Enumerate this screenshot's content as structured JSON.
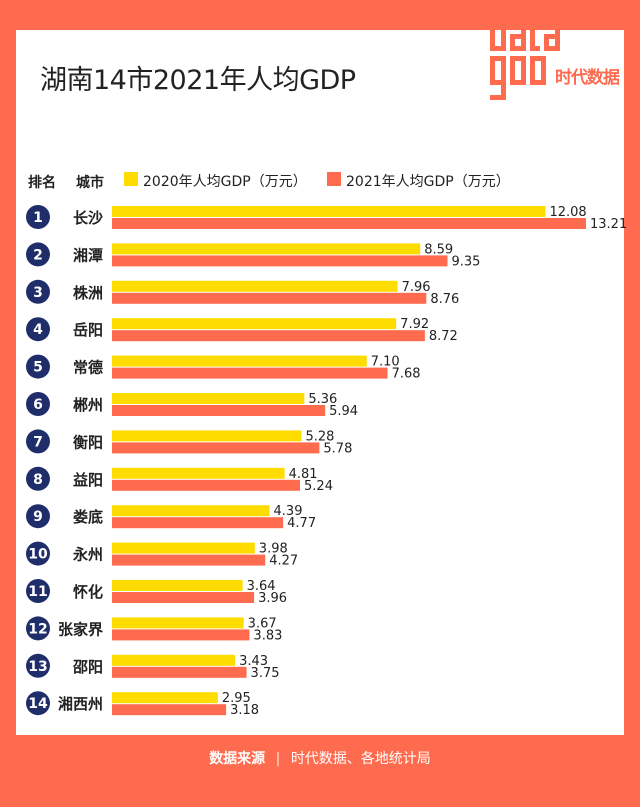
{
  "title": "湖南14市2021年人均GDP",
  "logo": {
    "mark_name": "datagoo-logo",
    "text": "时代数据"
  },
  "header": {
    "rank_label": "排名",
    "city_label": "城市"
  },
  "colors": {
    "y2020": "#ffdc00",
    "y2021": "#ff6b4f",
    "rank": "#1f2d6b",
    "frame": "#ff6b4f"
  },
  "footer": {
    "source_label": "数据来源",
    "separator": "|",
    "source_text": "时代数据、各地统计局"
  },
  "chart_data": {
    "type": "bar",
    "orientation": "horizontal",
    "title": "湖南14市2021年人均GDP",
    "series": [
      {
        "name": "2020年人均GDP（万元）",
        "values": [
          12.08,
          8.59,
          7.96,
          7.92,
          7.1,
          5.36,
          5.28,
          4.81,
          4.39,
          3.98,
          3.64,
          3.67,
          3.43,
          2.95
        ]
      },
      {
        "name": "2021年人均GDP（万元）",
        "values": [
          13.21,
          9.35,
          8.76,
          8.72,
          7.68,
          5.94,
          5.78,
          5.24,
          4.77,
          4.27,
          3.96,
          3.83,
          3.75,
          3.18
        ]
      }
    ],
    "ranks": [
      "1",
      "2",
      "3",
      "4",
      "5",
      "6",
      "7",
      "8",
      "9",
      "10",
      "11",
      "12",
      "13",
      "14"
    ],
    "categories": [
      "长沙",
      "湘潭",
      "株洲",
      "岳阳",
      "常德",
      "郴州",
      "衡阳",
      "益阳",
      "娄底",
      "永州",
      "怀化",
      "张家界",
      "邵阳",
      "湘西州"
    ],
    "value_labels": {
      "y2020": [
        "12.08",
        "8.59",
        "7.96",
        "7.92",
        "7.10",
        "5.36",
        "5.28",
        "4.81",
        "4.39",
        "3.98",
        "3.64",
        "3.67",
        "3.43",
        "2.95"
      ],
      "y2021": [
        "13.21",
        "9.35",
        "8.76",
        "8.72",
        "7.68",
        "5.94",
        "5.78",
        "5.24",
        "4.77",
        "4.27",
        "3.96",
        "3.83",
        "3.75",
        "3.18"
      ]
    },
    "xlim": [
      0,
      13.21
    ],
    "legend_position": "top",
    "grid": false
  }
}
